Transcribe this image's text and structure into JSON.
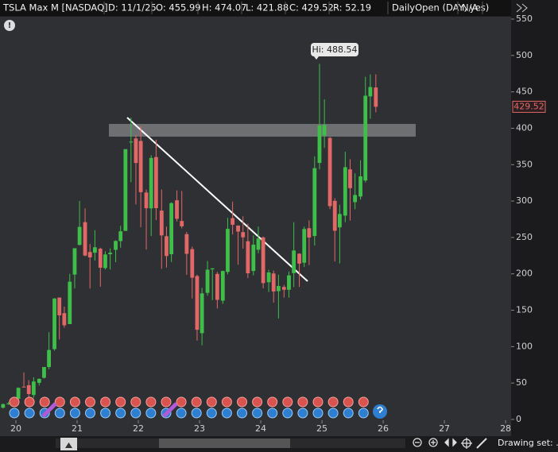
{
  "header": {
    "symbol": "TSLA Max M [NASDAQ]",
    "date": "D: 11/1/25",
    "open": "O: 455.99",
    "high": "H: 474.07",
    "low": "L: 421.88",
    "close": "C: 429.52",
    "range": "R: 52.19",
    "study": "DailyOpen (DAY, yes)",
    "study_value": "N/A"
  },
  "chart_data": {
    "type": "candlestick",
    "x": [
      19.79,
      19.88,
      19.96,
      20.04,
      20.13,
      20.21,
      20.29,
      20.38,
      20.46,
      20.54,
      20.63,
      20.71,
      20.79,
      20.88,
      20.96,
      21.04,
      21.13,
      21.21,
      21.29,
      21.38,
      21.46,
      21.54,
      21.63,
      21.71,
      21.79,
      21.88,
      21.96,
      22.04,
      22.13,
      22.21,
      22.29,
      22.38,
      22.46,
      22.54,
      22.63,
      22.71,
      22.79,
      22.88,
      22.96,
      23.04,
      23.13,
      23.21,
      23.29,
      23.38,
      23.46,
      23.54,
      23.63,
      23.71,
      23.79,
      23.88,
      23.96,
      24.04,
      24.13,
      24.21,
      24.29,
      24.38,
      24.46,
      24.54,
      24.63,
      24.71,
      24.79,
      24.88,
      24.96,
      25.04,
      25.13,
      25.21,
      25.29,
      25.38,
      25.46,
      25.54,
      25.63,
      25.71,
      25.79,
      25.88
    ],
    "open": [
      16.1,
      20.8,
      22.0,
      28.3,
      45.0,
      47.0,
      33.6,
      50.3,
      57.2,
      72.0,
      96.6,
      167.4,
      146.0,
      131.0,
      199.0,
      239.8,
      271.0,
      230.0,
      229.0,
      234.6,
      208.0,
      227.0,
      233.0,
      245.0,
      259.0,
      381.0,
      386.0,
      382.6,
      311.7,
      289.9,
      360.4,
      286.9,
      251.7,
      227.0,
      301.0,
      272.6,
      254.5,
      234.0,
      197.0,
      118.5,
      173.9,
      206.2,
      199.9,
      163.2,
      202.6,
      276.5,
      266.3,
      257.3,
      244.8,
      204.0,
      233.1,
      250.0,
      188.5,
      200.5,
      176.2,
      182.0,
      178.1,
      201.0,
      227.7,
      215.3,
      262.7,
      252.0,
      352.4,
      390.1,
      386.7,
      300.3,
      263.8,
      280.0,
      343.5,
      298.5,
      306.2,
      328.2,
      443.8,
      455.99
    ],
    "high": [
      22.0,
      24.1,
      29.0,
      43.9,
      64.6,
      54.0,
      58.0,
      56.4,
      67.9,
      119.7,
      166.7,
      167.5,
      155.0,
      200.0,
      231.7,
      300.1,
      290.0,
      241.0,
      260.0,
      236.0,
      231.0,
      235.0,
      246.0,
      266.0,
      371.0,
      414.5,
      390.9,
      402.7,
      315.7,
      363.0,
      384.3,
      315.9,
      265.0,
      298.3,
      314.7,
      313.8,
      257.5,
      237.4,
      198.9,
      180.7,
      217.7,
      207.8,
      202.7,
      204.5,
      277.0,
      299.3,
      266.5,
      279.0,
      268.9,
      252.8,
      265.1,
      251.3,
      205.6,
      204.5,
      198.9,
      184.8,
      203.2,
      271.0,
      228.2,
      264.9,
      273.5,
      361.5,
      488.54,
      439.7,
      388.0,
      303.9,
      294.9,
      367.7,
      357.5,
      338.0,
      356.0,
      470.8,
      474.0,
      474.07
    ],
    "low": [
      15.0,
      20.0,
      22.0,
      28.1,
      44.5,
      23.4,
      29.8,
      46.6,
      56.1,
      69.0,
      94.4,
      109.9,
      126.0,
      131.0,
      180.0,
      239.0,
      224.0,
      179.8,
      218.3,
      182.3,
      206.0,
      206.0,
      216.0,
      236.0,
      259.0,
      326.0,
      295.4,
      264.0,
      233.3,
      252.0,
      273.9,
      206.9,
      208.7,
      216.2,
      271.8,
      262.5,
      198.6,
      166.2,
      108.2,
      101.8,
      169.9,
      163.9,
      152.4,
      158.8,
      199.4,
      254.1,
      212.4,
      234.6,
      194.1,
      197.9,
      228.2,
      180.1,
      175.0,
      160.5,
      138.8,
      167.4,
      167.4,
      182.0,
      182.0,
      209.4,
      212.1,
      238.9,
      343.6,
      373.0,
      288.9,
      217.0,
      214.3,
      271.0,
      273.2,
      288.8,
      302.0,
      325.6,
      413.0,
      421.88
    ],
    "close": [
      21.0,
      22.0,
      28.0,
      43.4,
      44.5,
      34.9,
      52.1,
      55.7,
      72.0,
      95.4,
      166.1,
      143.0,
      129.3,
      189.2,
      235.2,
      264.5,
      225.2,
      222.6,
      236.5,
      208.4,
      226.6,
      229.0,
      245.2,
      258.5,
      371.3,
      381.6,
      352.3,
      312.2,
      290.1,
      359.2,
      290.3,
      252.8,
      224.5,
      297.1,
      275.6,
      265.3,
      227.5,
      194.7,
      123.2,
      173.2,
      205.7,
      207.5,
      164.3,
      203.9,
      261.8,
      267.4,
      258.1,
      250.2,
      200.8,
      240.1,
      248.5,
      187.3,
      201.9,
      175.8,
      183.3,
      178.1,
      197.9,
      232.1,
      214.1,
      261.6,
      249.9,
      345.2,
      403.8,
      404.6,
      293.0,
      259.2,
      282.2,
      346.5,
      317.7,
      308.3,
      333.9,
      444.7,
      456.6,
      429.52
    ],
    "up_color": "#3fbf4a",
    "down_color": "#e26868",
    "xlim": [
      19.74,
      28.09
    ],
    "ylim": [
      0,
      550
    ],
    "xticks": [
      20,
      21,
      22,
      23,
      24,
      25,
      26,
      27,
      28
    ],
    "yticks": [
      0,
      50,
      100,
      150,
      200,
      250,
      300,
      350,
      400,
      450,
      500,
      550
    ],
    "high_label": "Hi: 488.54"
  },
  "footer": {
    "drawing_set": "Drawing set: ."
  }
}
